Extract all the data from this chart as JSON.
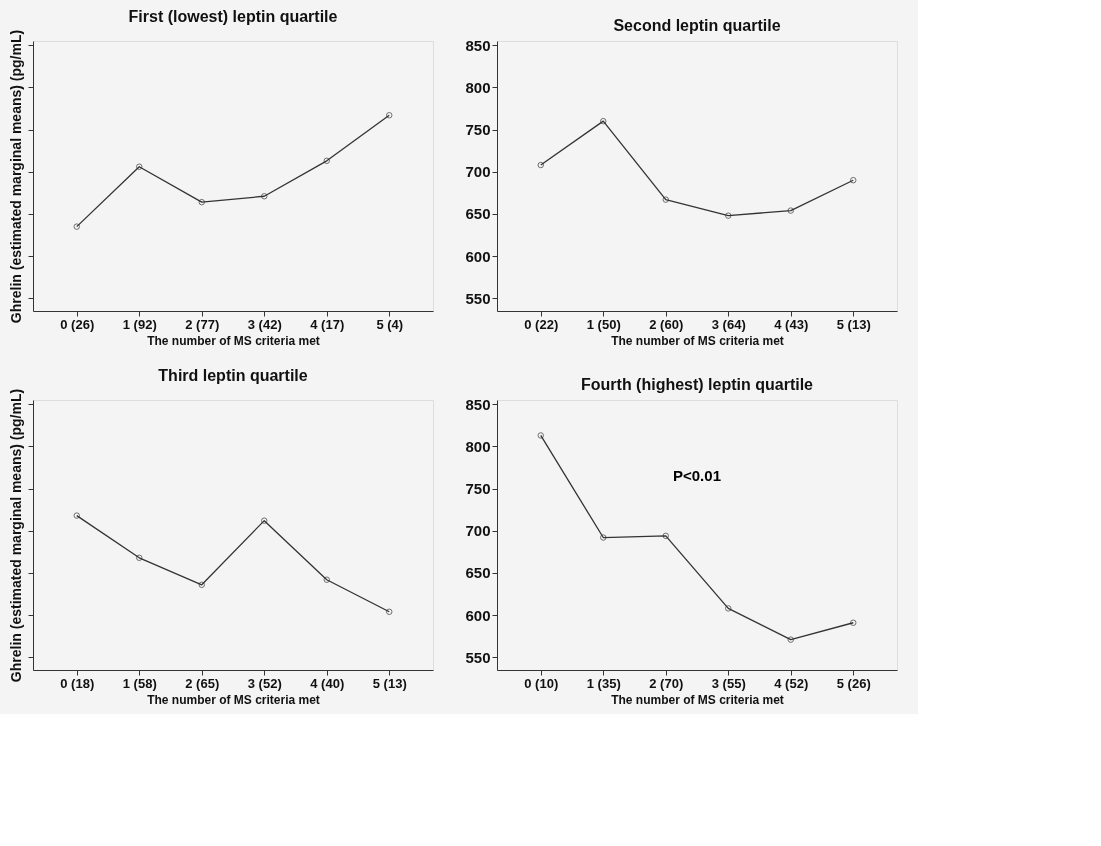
{
  "chart_data": [
    {
      "type": "line",
      "title": "First (lowest) leptin quartile",
      "xlabel": "The number of MS criteria met",
      "ylabel": "Ghrelin (estimated marginal means) (pg/mL)",
      "categories": [
        "0 (26)",
        "1 (92)",
        "2 (77)",
        "3 (42)",
        "4 (17)",
        "5 (4)"
      ],
      "series": [
        {
          "color": "#333333",
          "values": [
            635,
            706,
            664,
            671,
            713,
            767
          ]
        }
      ],
      "ylim": [
        535,
        855
      ],
      "yticks": [
        {
          "value": 550,
          "label": null
        },
        {
          "value": 600,
          "label": null
        },
        {
          "value": 650,
          "label": null
        },
        {
          "value": 700,
          "label": null
        },
        {
          "value": 750,
          "label": null
        },
        {
          "value": 800,
          "label": null
        },
        {
          "value": 850,
          "label": null
        }
      ],
      "tick_labels": "x",
      "marker": "circle",
      "line_style": "solid",
      "grid": false
    },
    {
      "type": "line",
      "title": "Second leptin quartile",
      "xlabel": "The number of MS criteria met",
      "categories": [
        "0 (22)",
        "1 (50)",
        "2 (60)",
        "3 (64)",
        "4 (43)",
        "5 (13)"
      ],
      "series": [
        {
          "color": "#333333",
          "values": [
            708,
            760,
            667,
            648,
            654,
            690
          ]
        }
      ],
      "ylim": [
        535,
        855
      ],
      "yticks": [
        550,
        600,
        650,
        700,
        750,
        800,
        850
      ],
      "marker": "circle",
      "line_style": "solid",
      "grid": false
    },
    {
      "type": "line",
      "title": "Third leptin quartile",
      "xlabel": "The number of MS criteria met",
      "ylabel": "Ghrelin (estimated marginal means) (pg/mL)",
      "categories": [
        "0 (18)",
        "1 (58)",
        "2 (65)",
        "3 (52)",
        "4 (40)",
        "5 (13)"
      ],
      "series": [
        {
          "color": "#333333",
          "values": [
            718,
            668,
            636,
            712,
            642,
            604
          ]
        }
      ],
      "ylim": [
        535,
        855
      ],
      "yticks": [
        {
          "value": 550,
          "label": null
        },
        {
          "value": 600,
          "label": null
        },
        {
          "value": 650,
          "label": null
        },
        {
          "value": 700,
          "label": null
        },
        {
          "value": 750,
          "label": null
        },
        {
          "value": 800,
          "label": null
        },
        {
          "value": 850,
          "label": null
        }
      ],
      "tick_labels": "x",
      "marker": "circle",
      "line_style": "solid",
      "grid": false
    },
    {
      "type": "line",
      "title": "Fourth (highest) leptin quartile",
      "xlabel": "The number of MS criteria met",
      "categories": [
        "0 (10)",
        "1 (35)",
        "2 (70)",
        "3 (55)",
        "4 (52)",
        "5 (26)"
      ],
      "series": [
        {
          "color": "#333333",
          "values": [
            813,
            692,
            694,
            608,
            571,
            591
          ]
        }
      ],
      "ylim": [
        535,
        855
      ],
      "yticks": [
        550,
        600,
        650,
        700,
        750,
        800,
        850
      ],
      "annotations": [
        "P<0.01"
      ],
      "marker": "circle",
      "line_style": "solid",
      "grid": false
    }
  ]
}
